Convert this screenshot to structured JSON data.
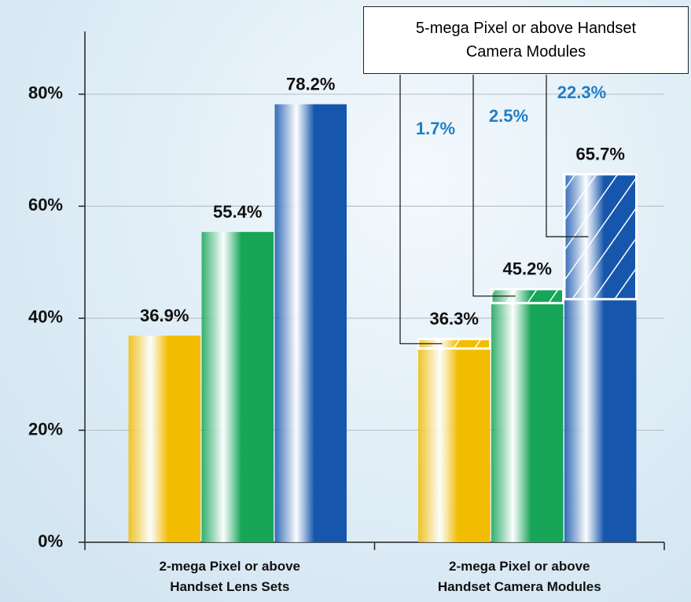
{
  "chart_data": {
    "type": "bar",
    "categories": [
      "2-mega Pixel or above\nHandset Lens Sets",
      "2-mega Pixel or above\nHandset Camera Modules"
    ],
    "series": [
      {
        "color": "#f2bc00",
        "values": [
          36.9,
          36.3
        ],
        "value_labels": [
          "36.9%",
          "36.3%"
        ],
        "highlight_values": [
          null,
          1.7
        ],
        "highlight_labels": [
          null,
          "1.7%"
        ]
      },
      {
        "color": "#17a558",
        "values": [
          55.4,
          45.2
        ],
        "value_labels": [
          "55.4%",
          "45.2%"
        ],
        "highlight_values": [
          null,
          2.5
        ],
        "highlight_labels": [
          null,
          "2.5%"
        ]
      },
      {
        "color": "#1656ad",
        "values": [
          78.2,
          65.7
        ],
        "value_labels": [
          "78.2%",
          "65.7%"
        ],
        "highlight_values": [
          null,
          22.3
        ],
        "highlight_labels": [
          null,
          "22.3%"
        ]
      }
    ],
    "highlight_title": "5-mega Pixel or above Handset Camera Modules",
    "highlight_color": "#1f7fc4",
    "ylim": [
      0,
      91.2
    ],
    "yticks": [
      {
        "value": 0,
        "label": "0%"
      },
      {
        "value": 20,
        "label": "20%"
      },
      {
        "value": 40,
        "label": "40%"
      },
      {
        "value": 60,
        "label": "60%"
      },
      {
        "value": 80,
        "label": "80%"
      }
    ],
    "grid": true
  }
}
